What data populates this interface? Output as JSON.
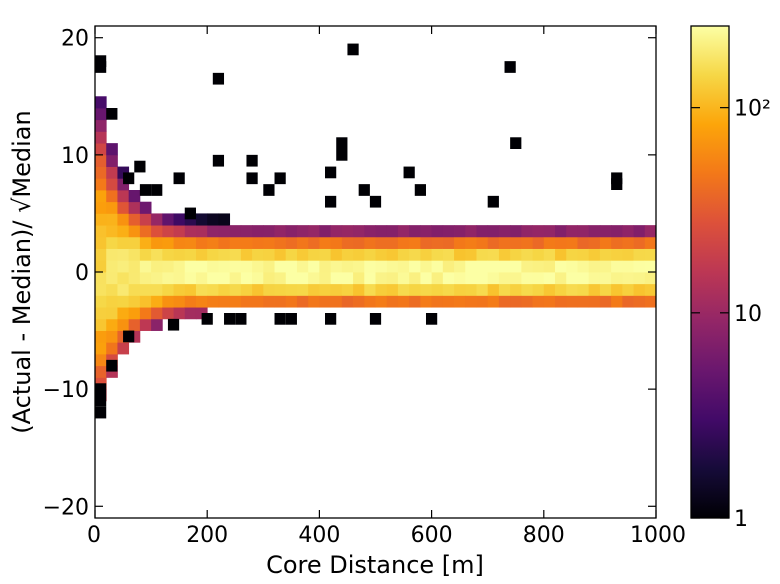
{
  "chart_data": {
    "type": "heatmap",
    "title": "",
    "xlabel": "Core Distance [m]",
    "ylabel": "(Actual - Median)/ √Median",
    "xlim": [
      0,
      1000
    ],
    "ylim": [
      -21,
      21
    ],
    "xticks": [
      {
        "value": 0,
        "label": "0"
      },
      {
        "value": 200,
        "label": "200"
      },
      {
        "value": 400,
        "label": "400"
      },
      {
        "value": 600,
        "label": "600"
      },
      {
        "value": 800,
        "label": "800"
      },
      {
        "value": 1000,
        "label": "1000"
      }
    ],
    "yticks": [
      {
        "value": -20,
        "label": "−20"
      },
      {
        "value": -10,
        "label": "−10"
      },
      {
        "value": 0,
        "label": "0"
      },
      {
        "value": 10,
        "label": "10"
      },
      {
        "value": 20,
        "label": "20"
      }
    ],
    "colorbar": {
      "scale": "log",
      "colormap": "inferno",
      "range": [
        1,
        250
      ],
      "ticks": [
        {
          "value": 1,
          "label": "1"
        },
        {
          "value": 10,
          "label": "10"
        },
        {
          "value": 100,
          "label": "10²"
        }
      ]
    },
    "bin_width_x": 20,
    "bin_height_y": 1,
    "bulk_distribution": {
      "center_y": 0,
      "peak_count_min": 150,
      "peak_count_max": 250,
      "core_half_width_at_far_distance": 2.5,
      "fringe_extent_at_small_distance": [
        -9,
        14
      ]
    },
    "sparse_bins": [
      {
        "x": 10,
        "y": 18,
        "count": 1
      },
      {
        "x": 10,
        "y": 17.5,
        "count": 1
      },
      {
        "x": 10,
        "y": -10,
        "count": 1
      },
      {
        "x": 10,
        "y": -11,
        "count": 1
      },
      {
        "x": 10,
        "y": -12,
        "count": 1
      },
      {
        "x": 30,
        "y": 13.5,
        "count": 1
      },
      {
        "x": 30,
        "y": -8,
        "count": 1
      },
      {
        "x": 60,
        "y": 8,
        "count": 1
      },
      {
        "x": 80,
        "y": 9,
        "count": 1
      },
      {
        "x": 90,
        "y": 7,
        "count": 1
      },
      {
        "x": 110,
        "y": 7,
        "count": 1
      },
      {
        "x": 150,
        "y": 8,
        "count": 1
      },
      {
        "x": 170,
        "y": 5,
        "count": 1
      },
      {
        "x": 220,
        "y": 16.5,
        "count": 1
      },
      {
        "x": 220,
        "y": 9.5,
        "count": 1
      },
      {
        "x": 280,
        "y": 9.5,
        "count": 1
      },
      {
        "x": 280,
        "y": 8,
        "count": 1
      },
      {
        "x": 310,
        "y": 7,
        "count": 1
      },
      {
        "x": 330,
        "y": 8,
        "count": 1
      },
      {
        "x": 420,
        "y": 8.5,
        "count": 1
      },
      {
        "x": 420,
        "y": 6,
        "count": 1
      },
      {
        "x": 440,
        "y": 11,
        "count": 1
      },
      {
        "x": 440,
        "y": 10,
        "count": 1
      },
      {
        "x": 460,
        "y": 19,
        "count": 1
      },
      {
        "x": 480,
        "y": 7,
        "count": 1
      },
      {
        "x": 500,
        "y": 6,
        "count": 1
      },
      {
        "x": 560,
        "y": 8.5,
        "count": 1
      },
      {
        "x": 580,
        "y": 7,
        "count": 1
      },
      {
        "x": 710,
        "y": 6,
        "count": 1
      },
      {
        "x": 740,
        "y": 17.5,
        "count": 1
      },
      {
        "x": 750,
        "y": 11,
        "count": 1
      },
      {
        "x": 930,
        "y": 8,
        "count": 1
      },
      {
        "x": 930,
        "y": 7.5,
        "count": 1
      },
      {
        "x": 140,
        "y": -4.5,
        "count": 1
      },
      {
        "x": 200,
        "y": -4,
        "count": 1
      },
      {
        "x": 240,
        "y": -4,
        "count": 1
      },
      {
        "x": 260,
        "y": -4,
        "count": 1
      },
      {
        "x": 330,
        "y": -4,
        "count": 1
      },
      {
        "x": 350,
        "y": -4,
        "count": 1
      },
      {
        "x": 420,
        "y": -4,
        "count": 1
      },
      {
        "x": 500,
        "y": -4,
        "count": 1
      },
      {
        "x": 600,
        "y": -4,
        "count": 1
      },
      {
        "x": 60,
        "y": -5.5,
        "count": 1
      }
    ]
  }
}
